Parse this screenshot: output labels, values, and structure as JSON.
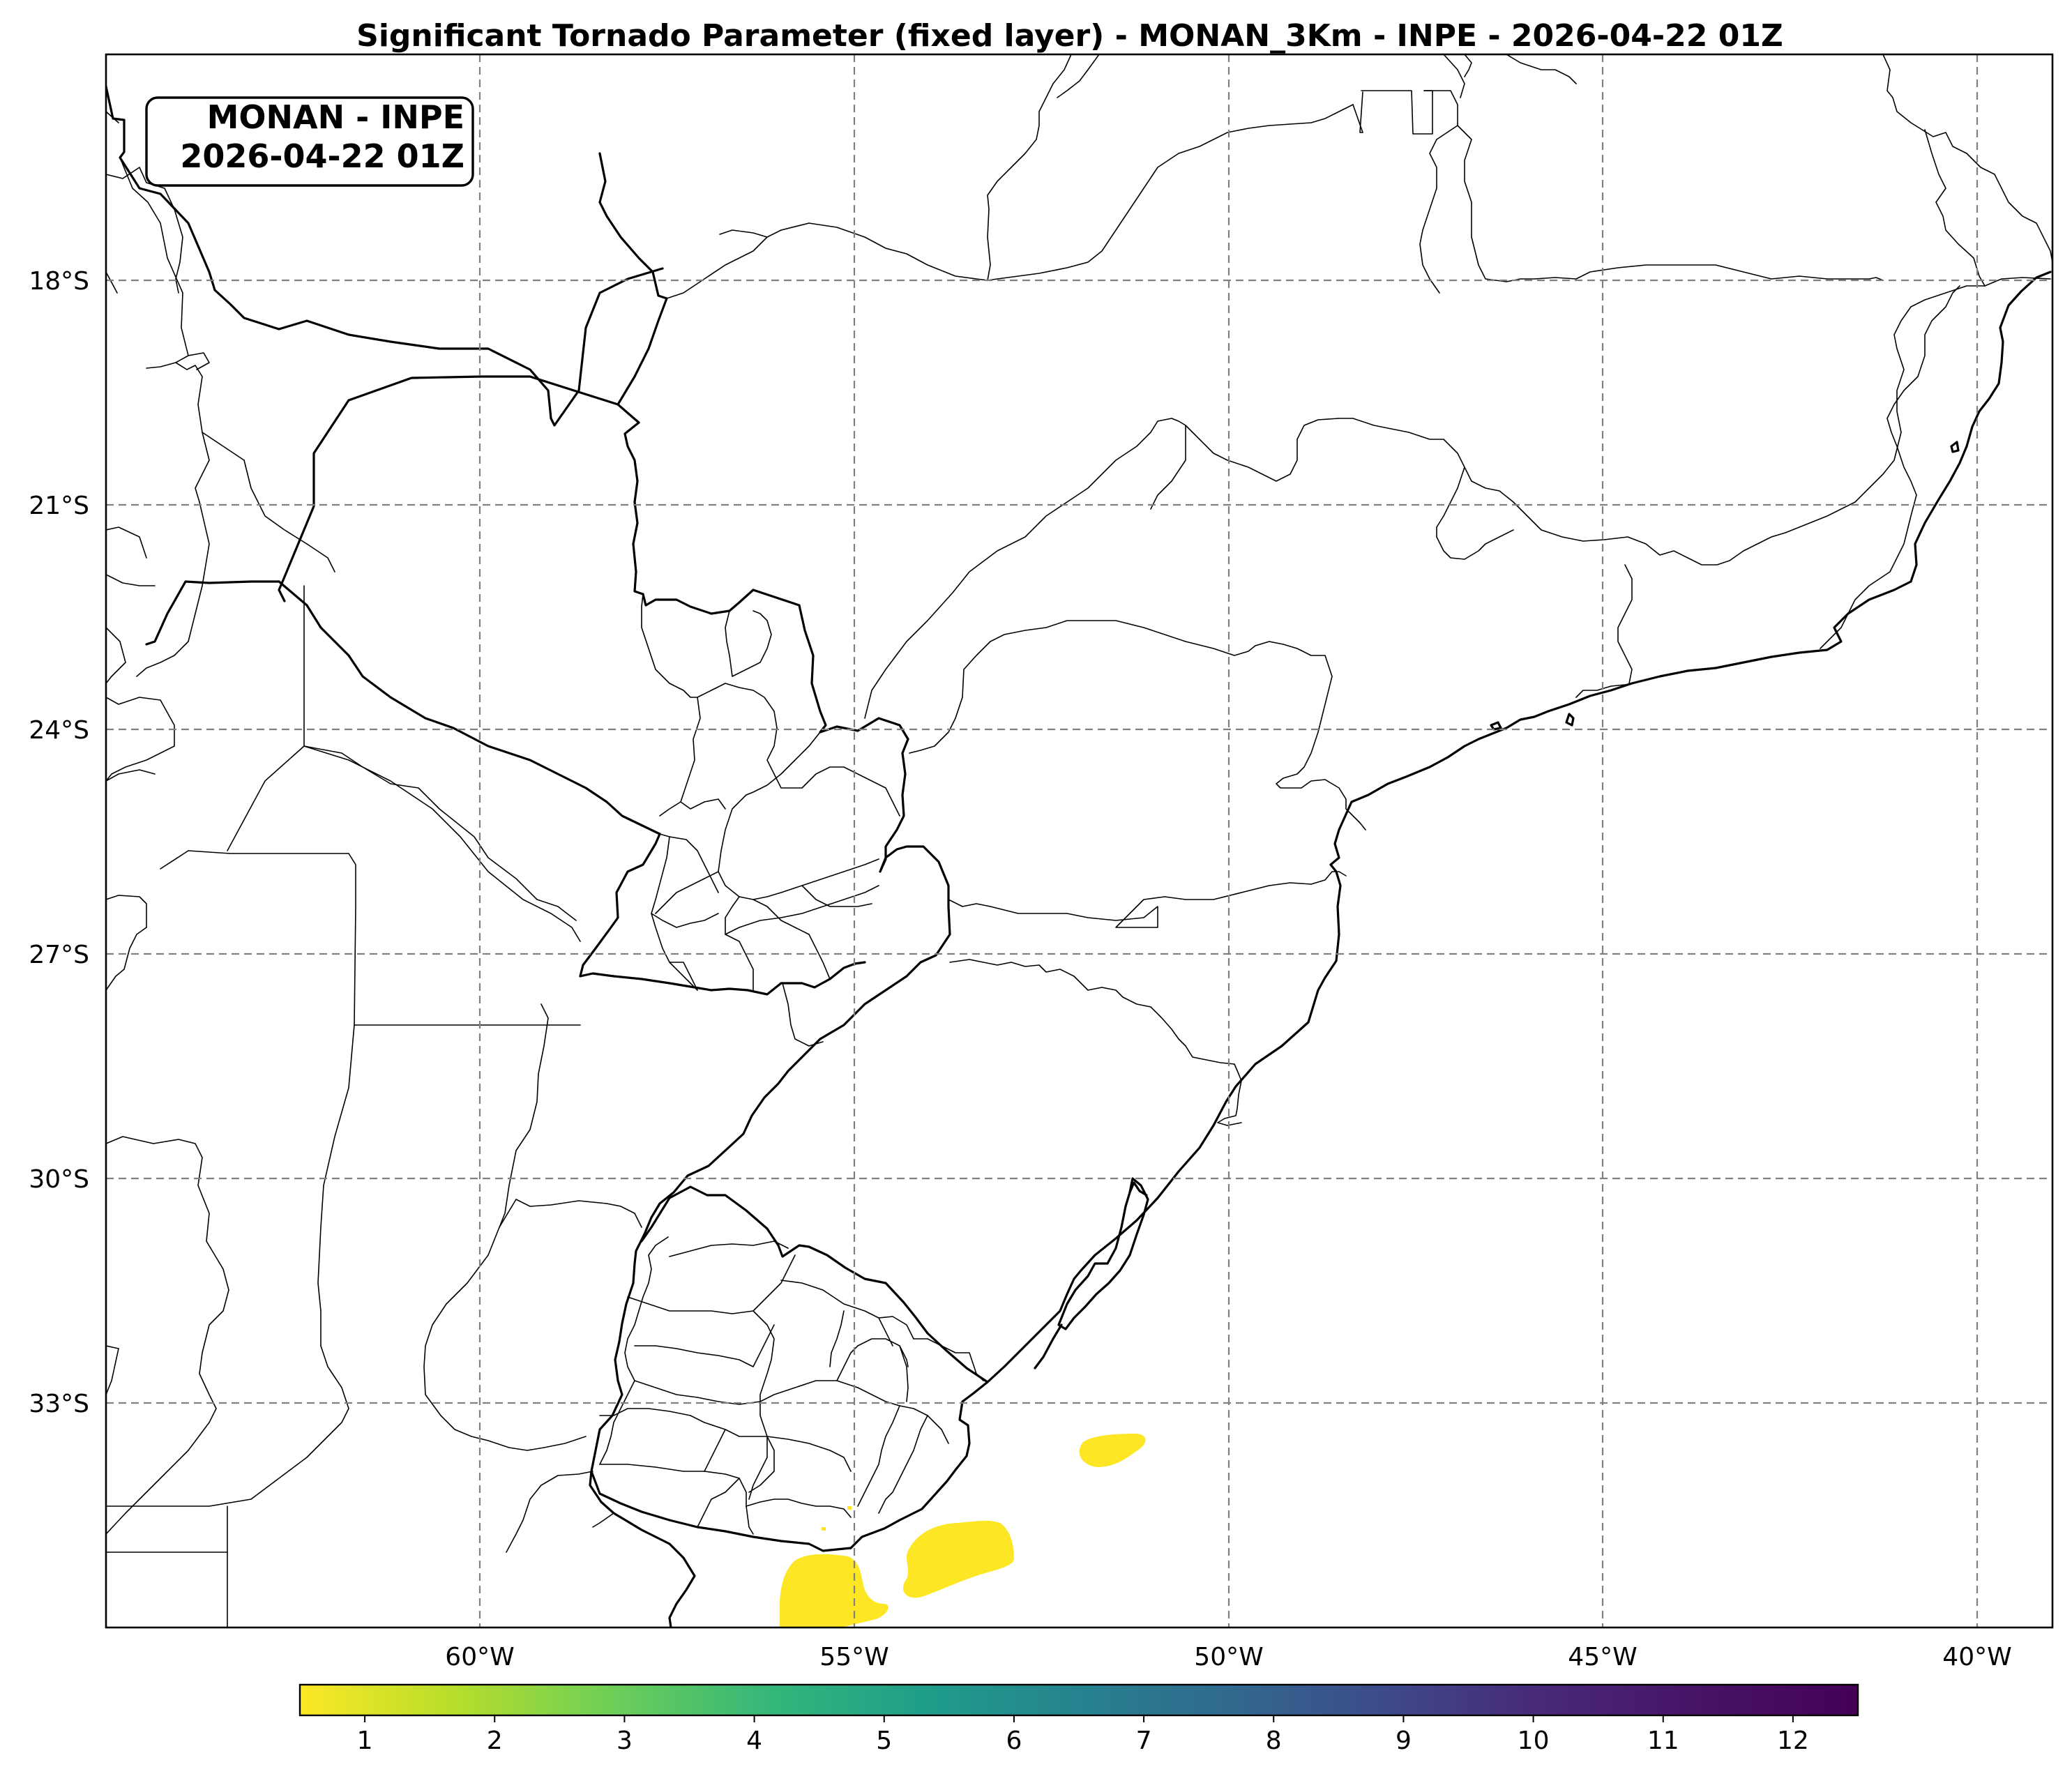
{
  "title": "Significant Tornado Parameter (fixed layer) - MONAN_3Km - INPE - 2026-04-22 01Z",
  "info_box": {
    "line1": "MONAN - INPE",
    "line2": "2026-04-22 01Z"
  },
  "longitude_ticks": [
    "60°W",
    "55°W",
    "50°W",
    "45°W",
    "40°W"
  ],
  "latitude_ticks": [
    "18°S",
    "21°S",
    "24°S",
    "27°S",
    "30°S",
    "33°S"
  ],
  "colorbar": {
    "ticks": [
      "1",
      "2",
      "3",
      "4",
      "5",
      "6",
      "7",
      "8",
      "9",
      "10",
      "11",
      "12"
    ],
    "colormap": "viridis_r",
    "low_color": "#fde725",
    "high_color": "#440154"
  },
  "stp_fields": [
    {
      "name": "offshore-blob-east",
      "value": 0.8
    },
    {
      "name": "uruguay-coast-blob",
      "value": 0.8
    },
    {
      "name": "south-coast-blob",
      "value": 0.8
    }
  ]
}
